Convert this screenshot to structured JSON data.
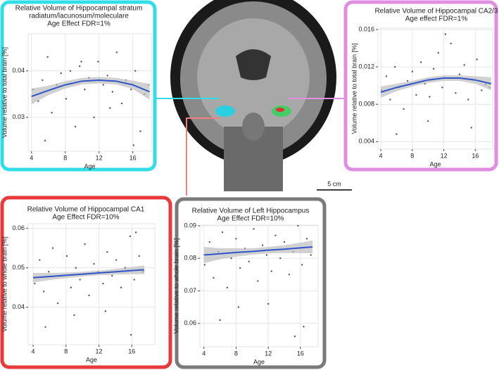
{
  "chart_data": [
    {
      "type": "scatter",
      "title": [
        "Relative Volume of Hippocampal stratum",
        "radiatum/lacunosum/moleculare"
      ],
      "subtitle": "Age Effect FDR=1%",
      "x_label": "Age",
      "y_label": "Volume relative to total brain [%]",
      "frame_color": "#33dde8",
      "xlim": [
        3.6,
        18.2
      ],
      "ylim": [
        0.0227,
        0.048
      ],
      "xticks": [
        4,
        8,
        12,
        16
      ],
      "yticks": [
        0.03,
        0.04
      ],
      "grid": true,
      "point_color": "#555555",
      "x": [
        4.2,
        4.8,
        5.3,
        5.9,
        6.4,
        7.0,
        7.5,
        8.1,
        8.6,
        9.2,
        9.7,
        10.3,
        10.8,
        11.4,
        11.9,
        12.5,
        13.0,
        13.6,
        14.1,
        14.7,
        15.2,
        15.8,
        16.3,
        16.9,
        17.4,
        17.9,
        5.6,
        9.9,
        13.3,
        16.1
      ],
      "values": [
        0.036,
        0.0335,
        0.038,
        0.043,
        0.031,
        0.037,
        0.0395,
        0.034,
        0.04,
        0.028,
        0.041,
        0.036,
        0.0385,
        0.03,
        0.042,
        0.037,
        0.039,
        0.0355,
        0.044,
        0.033,
        0.038,
        0.036,
        0.04,
        0.027,
        0.035,
        0.037,
        0.025,
        0.042,
        0.032,
        0.024
      ],
      "fit": {
        "color": "#2f55c8",
        "band_color": "#bdbdbd",
        "x": [
          4,
          6,
          8,
          10,
          12,
          14,
          16,
          18
        ],
        "values": [
          0.0345,
          0.0358,
          0.037,
          0.0378,
          0.038,
          0.0378,
          0.037,
          0.0355
        ],
        "lower": [
          0.0328,
          0.0348,
          0.0362,
          0.0371,
          0.0373,
          0.0371,
          0.0361,
          0.0338
        ],
        "upper": [
          0.0362,
          0.0368,
          0.0378,
          0.0385,
          0.0387,
          0.0385,
          0.0379,
          0.0372
        ]
      }
    },
    {
      "type": "scatter",
      "title": [
        "Relative Volume of Hippocampal CA2/3"
      ],
      "subtitle": "Age effect FDR=1%",
      "x_label": "Age",
      "y_label": "Volume relative to total brain [%]",
      "frame_color": "#e08ee0",
      "xlim": [
        3.64,
        18.2
      ],
      "ylim": [
        0.0032,
        0.01615
      ],
      "xticks": [
        4,
        8,
        12,
        16
      ],
      "yticks": [
        0.004,
        0.008,
        0.012,
        0.016
      ],
      "grid": true,
      "point_color": "#555555",
      "x": [
        4.1,
        4.7,
        5.2,
        5.8,
        6.3,
        6.9,
        7.4,
        8.0,
        8.5,
        9.1,
        9.6,
        10.2,
        10.7,
        11.3,
        11.8,
        12.4,
        12.9,
        13.5,
        14.0,
        14.6,
        15.1,
        15.7,
        16.2,
        16.8,
        17.3,
        17.8,
        6.0,
        10.0,
        12.2,
        15.5
      ],
      "values": [
        0.0095,
        0.011,
        0.0085,
        0.012,
        0.0098,
        0.0075,
        0.0105,
        0.0115,
        0.009,
        0.0125,
        0.0102,
        0.0088,
        0.0118,
        0.0135,
        0.0098,
        0.0108,
        0.0145,
        0.0092,
        0.0112,
        0.0122,
        0.0085,
        0.0106,
        0.0128,
        0.0095,
        0.0101,
        0.0098,
        0.0048,
        0.0062,
        0.0155,
        0.0055
      ],
      "fit": {
        "color": "#2f55c8",
        "band_color": "#bdbdbd",
        "x": [
          4,
          6,
          8,
          10,
          12,
          14,
          16,
          18
        ],
        "values": [
          0.0093,
          0.0098,
          0.0102,
          0.0106,
          0.0108,
          0.0108,
          0.0106,
          0.0102
        ],
        "lower": [
          0.0087,
          0.0094,
          0.0099,
          0.0103,
          0.0105,
          0.0105,
          0.0102,
          0.0095
        ],
        "upper": [
          0.0099,
          0.0102,
          0.0105,
          0.0109,
          0.0111,
          0.0111,
          0.011,
          0.0109
        ]
      }
    },
    {
      "type": "scatter",
      "title": [
        "Relative Volume of Hippocampal CA1"
      ],
      "subtitle": "Age Effect FDR=10%",
      "x_label": "Age",
      "y_label": "Volume relative to whole brain [%]",
      "frame_color": "#e83a3a",
      "xlim": [
        3.4,
        18.8
      ],
      "ylim": [
        0.0305,
        0.0612
      ],
      "xticks": [
        4,
        8,
        12,
        16
      ],
      "yticks": [
        0.04,
        0.05,
        0.06
      ],
      "grid": true,
      "point_color": "#555555",
      "x": [
        4.2,
        4.8,
        5.3,
        5.9,
        6.4,
        7.0,
        7.5,
        8.1,
        8.6,
        9.2,
        9.7,
        10.3,
        10.8,
        11.4,
        11.9,
        12.5,
        13.0,
        13.6,
        14.1,
        14.7,
        15.2,
        15.8,
        16.3,
        16.9,
        17.4,
        5.5,
        9.0,
        12.8,
        15.9,
        16.5
      ],
      "values": [
        0.046,
        0.052,
        0.044,
        0.049,
        0.055,
        0.041,
        0.048,
        0.053,
        0.045,
        0.05,
        0.047,
        0.056,
        0.043,
        0.051,
        0.049,
        0.046,
        0.054,
        0.048,
        0.052,
        0.045,
        0.05,
        0.058,
        0.047,
        0.053,
        0.049,
        0.035,
        0.038,
        0.039,
        0.033,
        0.059
      ],
      "fit": {
        "color": "#2f55c8",
        "band_color": "#bdbdbd",
        "x": [
          4,
          6,
          8,
          10,
          12,
          14,
          16,
          17.5
        ],
        "values": [
          0.0475,
          0.0478,
          0.0481,
          0.0484,
          0.0487,
          0.049,
          0.0493,
          0.0495
        ],
        "lower": [
          0.0463,
          0.0469,
          0.0474,
          0.0478,
          0.0481,
          0.0483,
          0.0484,
          0.0484
        ],
        "upper": [
          0.0487,
          0.0487,
          0.0488,
          0.049,
          0.0493,
          0.0497,
          0.0502,
          0.0506
        ]
      }
    },
    {
      "type": "scatter",
      "title": [
        "Relative Volume of Left Hippocampus"
      ],
      "subtitle": "Age Effect FDR=10%",
      "x_label": "Age",
      "y_label": "Volume relative to whole brain [%]",
      "frame_color": "#7a7a7a",
      "xlim": [
        3.5,
        18.2
      ],
      "ylim": [
        0.0528,
        0.0902
      ],
      "xticks": [
        4,
        8,
        12,
        16
      ],
      "yticks": [
        0.06,
        0.07,
        0.08,
        0.09
      ],
      "grid": true,
      "point_color": "#555555",
      "x": [
        4.1,
        4.7,
        5.2,
        5.8,
        6.3,
        6.9,
        7.4,
        8.0,
        8.5,
        9.1,
        9.6,
        10.2,
        10.7,
        11.3,
        11.8,
        12.4,
        12.9,
        13.5,
        14.0,
        14.6,
        15.1,
        15.7,
        16.2,
        16.8,
        17.3,
        6.0,
        8.3,
        12.0,
        15.3,
        16.4
      ],
      "values": [
        0.078,
        0.085,
        0.074,
        0.082,
        0.088,
        0.071,
        0.08,
        0.086,
        0.077,
        0.083,
        0.079,
        0.089,
        0.073,
        0.084,
        0.081,
        0.076,
        0.087,
        0.08,
        0.085,
        0.075,
        0.082,
        0.09,
        0.078,
        0.086,
        0.081,
        0.061,
        0.065,
        0.066,
        0.056,
        0.059
      ],
      "fit": {
        "color": "#2f55c8",
        "band_color": "#bdbdbd",
        "x": [
          4,
          6,
          8,
          10,
          12,
          14,
          16,
          17.5
        ],
        "values": [
          0.081,
          0.0814,
          0.0818,
          0.0821,
          0.0825,
          0.0828,
          0.0832,
          0.0835
        ],
        "lower": [
          0.0785,
          0.0797,
          0.0805,
          0.0811,
          0.0815,
          0.0816,
          0.0816,
          0.0815
        ],
        "upper": [
          0.0835,
          0.0831,
          0.0831,
          0.0831,
          0.0835,
          0.084,
          0.0848,
          0.0855
        ]
      }
    }
  ],
  "scale_bar": "5 cm"
}
